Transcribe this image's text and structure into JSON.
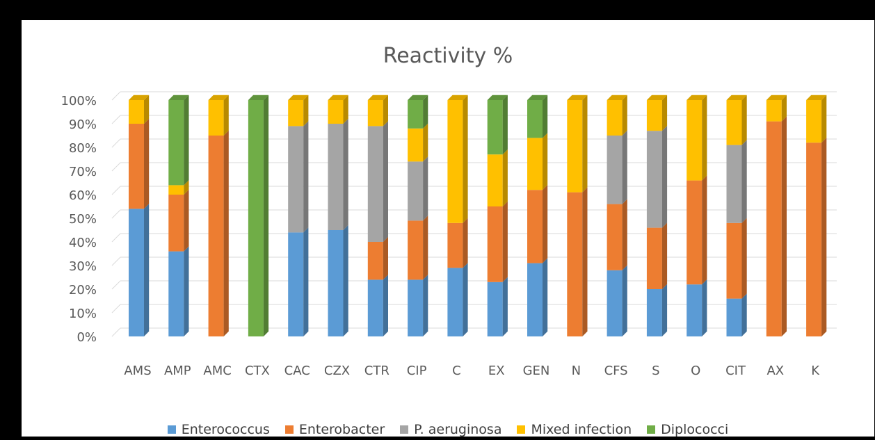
{
  "chart_data": {
    "type": "bar",
    "stacked": true,
    "percent_stacked": true,
    "three_d": true,
    "title": "Reactivity %",
    "categories": [
      "AMS",
      "AMP",
      "AMC",
      "CTX",
      "CAC",
      "CZX",
      "CTR",
      "CIP",
      "C",
      "EX",
      "GEN",
      "N",
      "CFS",
      "S",
      "O",
      "CIT",
      "AX",
      "K"
    ],
    "y_ticks": [
      "0%",
      "10%",
      "20%",
      "30%",
      "40%",
      "50%",
      "60%",
      "70%",
      "80%",
      "90%",
      "100%"
    ],
    "ylim": [
      0,
      100
    ],
    "grid": true,
    "legend_position": "bottom",
    "series": [
      {
        "name": "Enterococcus",
        "color": "#5B9BD5",
        "values": [
          54,
          36,
          0,
          0,
          44,
          45,
          24,
          24,
          29,
          23,
          31,
          0,
          28,
          20,
          22,
          16,
          0,
          0
        ]
      },
      {
        "name": "Enterobacter",
        "color": "#ED7D31",
        "values": [
          36,
          24,
          85,
          0,
          0,
          0,
          16,
          25,
          19,
          32,
          31,
          61,
          28,
          26,
          44,
          32,
          91,
          82
        ]
      },
      {
        "name": "P. aeruginosa",
        "color": "#A5A5A5",
        "values": [
          0,
          0,
          0,
          0,
          45,
          45,
          49,
          25,
          0,
          0,
          0,
          0,
          29,
          41,
          0,
          33,
          0,
          0
        ]
      },
      {
        "name": "Mixed infection",
        "color": "#FFC000",
        "values": [
          10,
          4,
          15,
          0,
          11,
          10,
          11,
          14,
          52,
          22,
          22,
          39,
          15,
          13,
          34,
          19,
          9,
          18
        ]
      },
      {
        "name": "Diplococci",
        "color": "#70AD47",
        "values": [
          0,
          36,
          0,
          100,
          0,
          0,
          0,
          12,
          0,
          23,
          16,
          0,
          0,
          0,
          0,
          0,
          0,
          0
        ]
      }
    ]
  }
}
